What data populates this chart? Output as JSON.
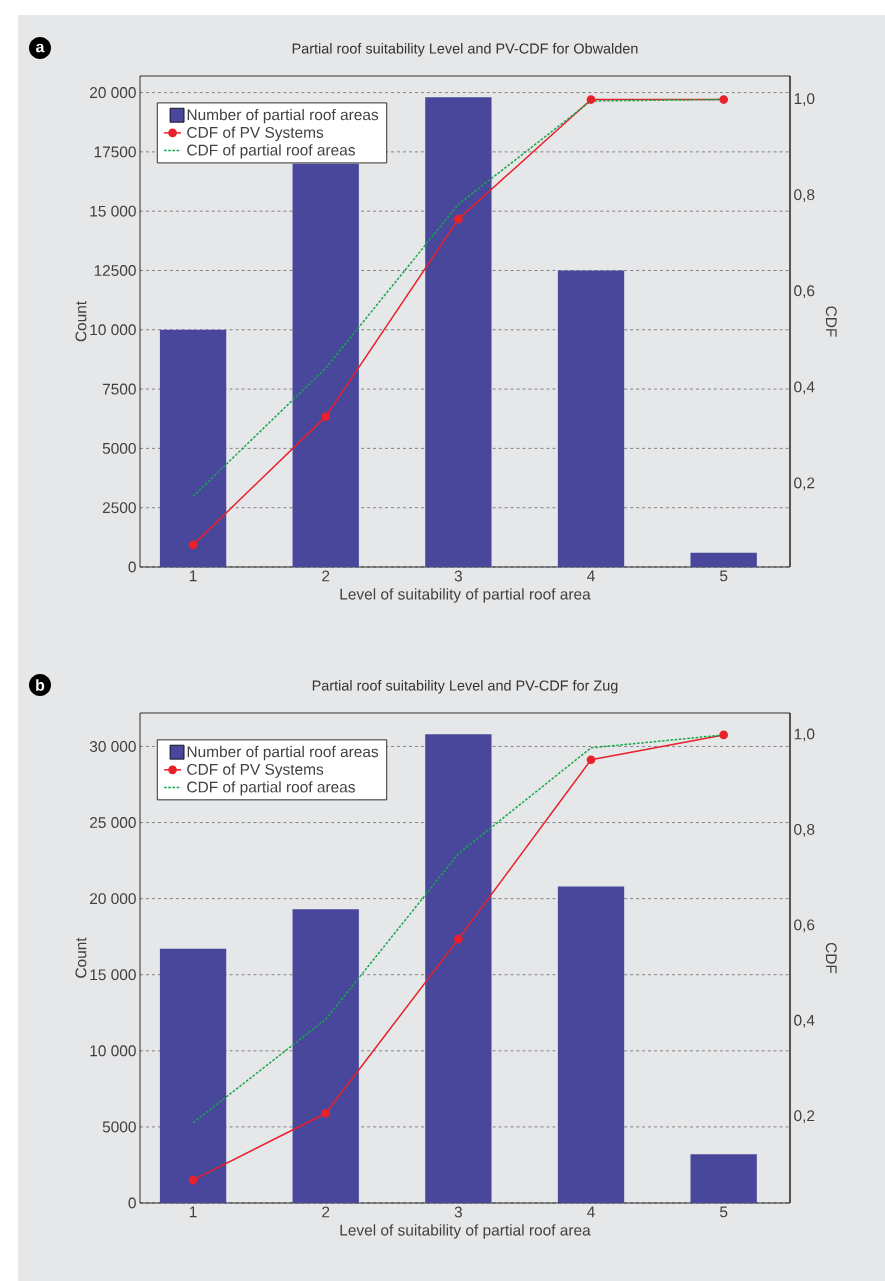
{
  "chart_data": [
    {
      "type": "bar",
      "title": "Partial roof suitability Level and PV-CDF for Obwalden",
      "xlabel": "Level of suitability of partial roof area",
      "ylabel": "Count",
      "y2label": "CDF",
      "annotations": [
        "a"
      ],
      "categories": [
        "1",
        "2",
        "3",
        "4",
        "5"
      ],
      "series": [
        {
          "name": "Number of partial roof areas",
          "color": "#48479b",
          "values": [
            10000,
            17000,
            19800,
            12500,
            600
          ]
        },
        {
          "name": "CDF of PV Systems",
          "type": "line",
          "axis": "y2",
          "color": "#e8212b",
          "marker": "circle",
          "line_style": "solid",
          "values": [
            0.073,
            0.34,
            0.751,
            1.0,
            1.0
          ]
        },
        {
          "name": "CDF of partial roof areas",
          "type": "line",
          "axis": "y2",
          "color": "#14a84a",
          "marker": "none",
          "line_style": "dotted",
          "values": [
            0.174,
            0.441,
            0.782,
            0.997,
            1.0
          ]
        }
      ],
      "ylim": [
        0,
        20700
      ],
      "yticks": [
        0,
        2500,
        5000,
        7500,
        {
          "value": 10000,
          "label": "10 000"
        },
        12500,
        {
          "value": 15000,
          "label": "15 000"
        },
        17500,
        {
          "value": 20000,
          "label": "20 000"
        }
      ],
      "y2lim": [
        0.027,
        1.049
      ],
      "y2ticks": [
        {
          "value": 0.2,
          "label": "0,2"
        },
        {
          "value": 0.4,
          "label": "0,4"
        },
        {
          "value": 0.6,
          "label": "0,6"
        },
        {
          "value": 0.8,
          "label": "0,8"
        },
        {
          "value": 1.0,
          "label": "1,0"
        }
      ],
      "grid": "y",
      "legend": "top left"
    },
    {
      "type": "bar",
      "title": "Partial roof suitability Level and PV-CDF for Zug",
      "xlabel": "Level of suitability of partial roof area",
      "ylabel": "Count",
      "y2label": "CDF",
      "annotations": [
        "b"
      ],
      "categories": [
        "1",
        "2",
        "3",
        "4",
        "5"
      ],
      "series": [
        {
          "name": "Number of partial roof areas",
          "color": "#48479b",
          "values": [
            16700,
            19300,
            30800,
            20800,
            3200
          ]
        },
        {
          "name": "CDF of PV Systems",
          "type": "line",
          "axis": "y2",
          "color": "#e8212b",
          "marker": "circle",
          "line_style": "solid",
          "values": [
            0.067,
            0.207,
            0.572,
            0.948,
            1.0
          ]
        },
        {
          "name": "CDF of partial roof areas",
          "type": "line",
          "axis": "y2",
          "color": "#14a84a",
          "marker": "none",
          "line_style": "dotted",
          "values": [
            0.187,
            0.404,
            0.751,
            0.973,
            1.0
          ]
        }
      ],
      "ylim": [
        0,
        32200
      ],
      "yticks": [
        0,
        5000,
        {
          "value": 10000,
          "label": "10 000"
        },
        {
          "value": 15000,
          "label": "15 000"
        },
        {
          "value": 20000,
          "label": "20 000"
        },
        {
          "value": 25000,
          "label": "25 000"
        },
        {
          "value": 30000,
          "label": "30 000"
        }
      ],
      "y2lim": [
        0.019,
        1.046
      ],
      "y2ticks": [
        {
          "value": 0.2,
          "label": "0,2"
        },
        {
          "value": 0.4,
          "label": "0,4"
        },
        {
          "value": 0.6,
          "label": "0,6"
        },
        {
          "value": 0.8,
          "label": "0,8"
        },
        {
          "value": 1.0,
          "label": "1,0"
        }
      ],
      "grid": "y",
      "legend": "top left"
    }
  ]
}
